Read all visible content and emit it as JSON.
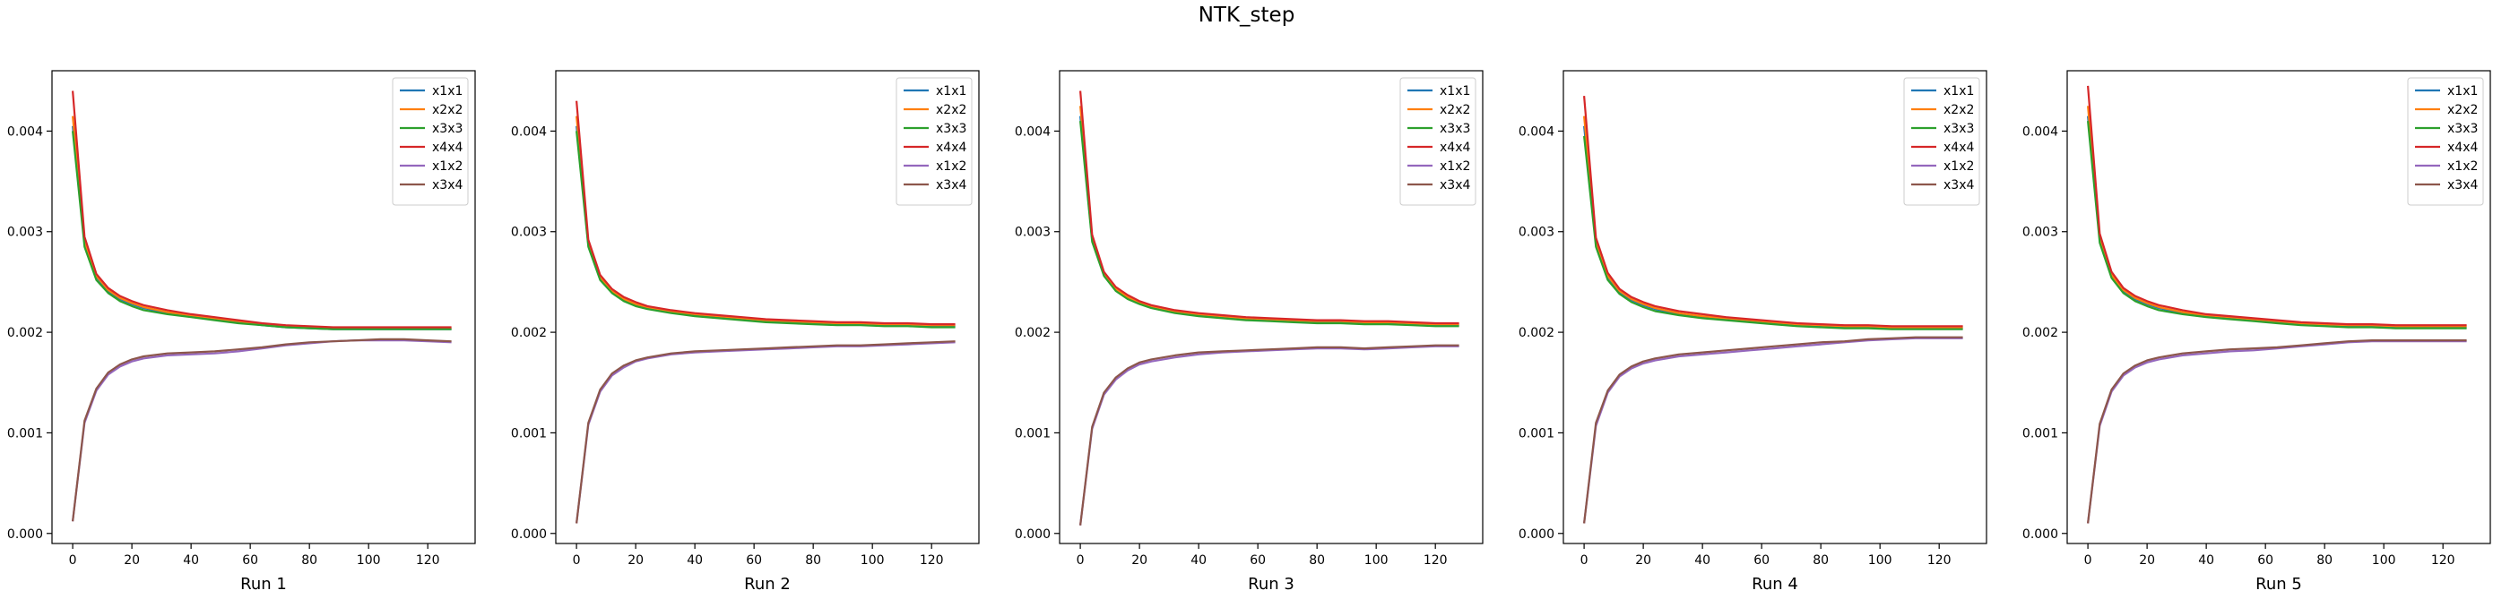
{
  "figure": {
    "title": "NTK_step"
  },
  "colors": {
    "x1x1": "#1f77b4",
    "x2x2": "#ff7f0e",
    "x3x3": "#2ca02c",
    "x4x4": "#d62728",
    "x1x2": "#9467bd",
    "x3x4": "#8c564b"
  },
  "chart_data": [
    {
      "type": "line",
      "xlabel": "Run 1",
      "xlim": [
        -7,
        136
      ],
      "ylim": [
        -0.0001,
        0.0046
      ],
      "xticks": [
        0,
        20,
        40,
        60,
        80,
        100,
        120
      ],
      "yticks": [
        0.0,
        0.001,
        0.002,
        0.003,
        0.004
      ],
      "legend": "top-right",
      "grid": false,
      "x": [
        0,
        4,
        8,
        12,
        16,
        20,
        24,
        32,
        40,
        48,
        56,
        64,
        72,
        80,
        88,
        96,
        104,
        112,
        120,
        128
      ],
      "series": [
        {
          "name": "x1x1",
          "values": [
            0.00405,
            0.00288,
            0.00255,
            0.00241,
            0.00233,
            0.00228,
            0.00224,
            0.00219,
            0.00216,
            0.00213,
            0.0021,
            0.00207,
            0.00205,
            0.00204,
            0.00203,
            0.00203,
            0.00203,
            0.00203,
            0.00203,
            0.00203
          ]
        },
        {
          "name": "x2x2",
          "values": [
            0.00415,
            0.0029,
            0.00256,
            0.00242,
            0.00234,
            0.00229,
            0.00225,
            0.0022,
            0.00217,
            0.00214,
            0.00211,
            0.00208,
            0.00206,
            0.00205,
            0.00204,
            0.00204,
            0.00204,
            0.00204,
            0.00204,
            0.00204
          ]
        },
        {
          "name": "x3x3",
          "values": [
            0.004,
            0.00285,
            0.00252,
            0.00239,
            0.00231,
            0.00226,
            0.00222,
            0.00218,
            0.00215,
            0.00212,
            0.00209,
            0.00207,
            0.00205,
            0.00204,
            0.00203,
            0.00203,
            0.00203,
            0.00203,
            0.00203,
            0.00203
          ]
        },
        {
          "name": "x4x4",
          "values": [
            0.0044,
            0.00295,
            0.00258,
            0.00244,
            0.00236,
            0.00231,
            0.00227,
            0.00222,
            0.00218,
            0.00215,
            0.00212,
            0.00209,
            0.00207,
            0.00206,
            0.00205,
            0.00205,
            0.00205,
            0.00205,
            0.00205,
            0.00205
          ]
        },
        {
          "name": "x1x2",
          "values": [
            0.00012,
            0.0011,
            0.00142,
            0.00158,
            0.00166,
            0.00171,
            0.00174,
            0.00177,
            0.00178,
            0.00179,
            0.00181,
            0.00184,
            0.00187,
            0.00189,
            0.00191,
            0.00192,
            0.00192,
            0.00192,
            0.00191,
            0.0019
          ]
        },
        {
          "name": "x3x4",
          "values": [
            0.00012,
            0.00112,
            0.00144,
            0.0016,
            0.00168,
            0.00173,
            0.00176,
            0.00179,
            0.0018,
            0.00181,
            0.00183,
            0.00185,
            0.00188,
            0.0019,
            0.00191,
            0.00192,
            0.00193,
            0.00193,
            0.00192,
            0.00191
          ]
        }
      ]
    },
    {
      "type": "line",
      "xlabel": "Run 2",
      "xlim": [
        -7,
        136
      ],
      "ylim": [
        -0.0001,
        0.0046
      ],
      "xticks": [
        0,
        20,
        40,
        60,
        80,
        100,
        120
      ],
      "yticks": [
        0.0,
        0.001,
        0.002,
        0.003,
        0.004
      ],
      "legend": "top-right",
      "grid": false,
      "x": [
        0,
        4,
        8,
        12,
        16,
        20,
        24,
        32,
        40,
        48,
        56,
        64,
        72,
        80,
        88,
        96,
        104,
        112,
        120,
        128
      ],
      "series": [
        {
          "name": "x1x1",
          "values": [
            0.00405,
            0.00287,
            0.00254,
            0.0024,
            0.00232,
            0.00227,
            0.00224,
            0.0022,
            0.00217,
            0.00215,
            0.00213,
            0.00211,
            0.0021,
            0.00209,
            0.00208,
            0.00208,
            0.00207,
            0.00207,
            0.00206,
            0.00206
          ]
        },
        {
          "name": "x2x2",
          "values": [
            0.00415,
            0.00289,
            0.00255,
            0.00241,
            0.00233,
            0.00228,
            0.00225,
            0.00221,
            0.00218,
            0.00216,
            0.00214,
            0.00212,
            0.00211,
            0.0021,
            0.00209,
            0.00209,
            0.00208,
            0.00208,
            0.00207,
            0.00207
          ]
        },
        {
          "name": "x3x3",
          "values": [
            0.004,
            0.00285,
            0.00252,
            0.00239,
            0.00231,
            0.00226,
            0.00223,
            0.00219,
            0.00216,
            0.00214,
            0.00212,
            0.0021,
            0.00209,
            0.00208,
            0.00207,
            0.00207,
            0.00206,
            0.00206,
            0.00205,
            0.00205
          ]
        },
        {
          "name": "x4x4",
          "values": [
            0.0043,
            0.00292,
            0.00257,
            0.00243,
            0.00235,
            0.0023,
            0.00226,
            0.00222,
            0.00219,
            0.00217,
            0.00215,
            0.00213,
            0.00212,
            0.00211,
            0.0021,
            0.0021,
            0.00209,
            0.00209,
            0.00208,
            0.00208
          ]
        },
        {
          "name": "x1x2",
          "values": [
            0.0001,
            0.00108,
            0.00141,
            0.00157,
            0.00165,
            0.00171,
            0.00174,
            0.00178,
            0.0018,
            0.00181,
            0.00182,
            0.00183,
            0.00184,
            0.00185,
            0.00186,
            0.00186,
            0.00187,
            0.00188,
            0.00189,
            0.0019
          ]
        },
        {
          "name": "x3x4",
          "values": [
            0.0001,
            0.0011,
            0.00143,
            0.00159,
            0.00167,
            0.00172,
            0.00175,
            0.00179,
            0.00181,
            0.00182,
            0.00183,
            0.00184,
            0.00185,
            0.00186,
            0.00187,
            0.00187,
            0.00188,
            0.00189,
            0.0019,
            0.00191
          ]
        }
      ]
    },
    {
      "type": "line",
      "xlabel": "Run 3",
      "xlim": [
        -7,
        136
      ],
      "ylim": [
        -0.0001,
        0.0046
      ],
      "xticks": [
        0,
        20,
        40,
        60,
        80,
        100,
        120
      ],
      "yticks": [
        0.0,
        0.001,
        0.002,
        0.003,
        0.004
      ],
      "legend": "top-right",
      "grid": false,
      "x": [
        0,
        4,
        8,
        12,
        16,
        20,
        24,
        32,
        40,
        48,
        56,
        64,
        72,
        80,
        88,
        96,
        104,
        112,
        120,
        128
      ],
      "series": [
        {
          "name": "x1x1",
          "values": [
            0.00415,
            0.00292,
            0.00257,
            0.00242,
            0.00234,
            0.00229,
            0.00225,
            0.0022,
            0.00217,
            0.00215,
            0.00213,
            0.00212,
            0.00211,
            0.0021,
            0.0021,
            0.00209,
            0.00209,
            0.00208,
            0.00207,
            0.00207
          ]
        },
        {
          "name": "x2x2",
          "values": [
            0.00425,
            0.00294,
            0.00258,
            0.00243,
            0.00235,
            0.0023,
            0.00226,
            0.00221,
            0.00218,
            0.00216,
            0.00214,
            0.00213,
            0.00212,
            0.00211,
            0.00211,
            0.0021,
            0.0021,
            0.00209,
            0.00208,
            0.00208
          ]
        },
        {
          "name": "x3x3",
          "values": [
            0.0041,
            0.0029,
            0.00256,
            0.00241,
            0.00233,
            0.00228,
            0.00224,
            0.00219,
            0.00216,
            0.00214,
            0.00212,
            0.00211,
            0.0021,
            0.00209,
            0.00209,
            0.00208,
            0.00208,
            0.00207,
            0.00206,
            0.00206
          ]
        },
        {
          "name": "x4x4",
          "values": [
            0.0044,
            0.00297,
            0.0026,
            0.00245,
            0.00237,
            0.00231,
            0.00227,
            0.00222,
            0.00219,
            0.00217,
            0.00215,
            0.00214,
            0.00213,
            0.00212,
            0.00212,
            0.00211,
            0.00211,
            0.0021,
            0.00209,
            0.00209
          ]
        },
        {
          "name": "x1x2",
          "values": [
            8e-05,
            0.00104,
            0.00138,
            0.00153,
            0.00162,
            0.00168,
            0.00171,
            0.00175,
            0.00178,
            0.0018,
            0.00181,
            0.00182,
            0.00183,
            0.00184,
            0.00184,
            0.00183,
            0.00184,
            0.00185,
            0.00186,
            0.00186
          ]
        },
        {
          "name": "x3x4",
          "values": [
            8e-05,
            0.00106,
            0.0014,
            0.00155,
            0.00164,
            0.0017,
            0.00173,
            0.00177,
            0.0018,
            0.00181,
            0.00182,
            0.00183,
            0.00184,
            0.00185,
            0.00185,
            0.00184,
            0.00185,
            0.00186,
            0.00187,
            0.00187
          ]
        }
      ]
    },
    {
      "type": "line",
      "xlabel": "Run 4",
      "xlim": [
        -7,
        136
      ],
      "ylim": [
        -0.0001,
        0.0046
      ],
      "xticks": [
        0,
        20,
        40,
        60,
        80,
        100,
        120
      ],
      "yticks": [
        0.0,
        0.001,
        0.002,
        0.003,
        0.004
      ],
      "legend": "top-right",
      "grid": false,
      "x": [
        0,
        4,
        8,
        12,
        16,
        20,
        24,
        32,
        40,
        48,
        56,
        64,
        72,
        80,
        88,
        96,
        104,
        112,
        120,
        128
      ],
      "series": [
        {
          "name": "x1x1",
          "values": [
            0.00405,
            0.00288,
            0.00255,
            0.0024,
            0.00232,
            0.00227,
            0.00223,
            0.00218,
            0.00215,
            0.00213,
            0.00211,
            0.00209,
            0.00207,
            0.00206,
            0.00205,
            0.00205,
            0.00204,
            0.00204,
            0.00204,
            0.00204
          ]
        },
        {
          "name": "x2x2",
          "values": [
            0.00415,
            0.0029,
            0.00256,
            0.00241,
            0.00233,
            0.00228,
            0.00224,
            0.00219,
            0.00216,
            0.00214,
            0.00212,
            0.0021,
            0.00208,
            0.00207,
            0.00206,
            0.00206,
            0.00205,
            0.00205,
            0.00205,
            0.00205
          ]
        },
        {
          "name": "x3x3",
          "values": [
            0.00395,
            0.00285,
            0.00252,
            0.00238,
            0.0023,
            0.00225,
            0.00221,
            0.00217,
            0.00214,
            0.00212,
            0.0021,
            0.00208,
            0.00206,
            0.00205,
            0.00204,
            0.00204,
            0.00203,
            0.00203,
            0.00203,
            0.00203
          ]
        },
        {
          "name": "x4x4",
          "values": [
            0.00435,
            0.00294,
            0.00259,
            0.00243,
            0.00235,
            0.0023,
            0.00226,
            0.00221,
            0.00218,
            0.00215,
            0.00213,
            0.00211,
            0.00209,
            0.00208,
            0.00207,
            0.00207,
            0.00206,
            0.00206,
            0.00206,
            0.00206
          ]
        },
        {
          "name": "x1x2",
          "values": [
            0.0001,
            0.00107,
            0.0014,
            0.00156,
            0.00164,
            0.00169,
            0.00172,
            0.00176,
            0.00178,
            0.0018,
            0.00182,
            0.00184,
            0.00186,
            0.00188,
            0.0019,
            0.00192,
            0.00193,
            0.00194,
            0.00194,
            0.00194
          ]
        },
        {
          "name": "x3x4",
          "values": [
            0.0001,
            0.0011,
            0.00142,
            0.00158,
            0.00166,
            0.00171,
            0.00174,
            0.00178,
            0.0018,
            0.00182,
            0.00184,
            0.00186,
            0.00188,
            0.0019,
            0.00191,
            0.00193,
            0.00194,
            0.00195,
            0.00195,
            0.00195
          ]
        }
      ]
    },
    {
      "type": "line",
      "xlabel": "Run 5",
      "xlim": [
        -7,
        136
      ],
      "ylim": [
        -0.0001,
        0.0046
      ],
      "xticks": [
        0,
        20,
        40,
        60,
        80,
        100,
        120
      ],
      "yticks": [
        0.0,
        0.001,
        0.002,
        0.003,
        0.004
      ],
      "legend": "top-right",
      "grid": false,
      "x": [
        0,
        4,
        8,
        12,
        16,
        20,
        24,
        32,
        40,
        48,
        56,
        64,
        72,
        80,
        88,
        96,
        104,
        112,
        120,
        128
      ],
      "series": [
        {
          "name": "x1x1",
          "values": [
            0.00415,
            0.00292,
            0.00256,
            0.00241,
            0.00233,
            0.00228,
            0.00224,
            0.00219,
            0.00216,
            0.00214,
            0.00212,
            0.0021,
            0.00208,
            0.00207,
            0.00206,
            0.00206,
            0.00205,
            0.00205,
            0.00205,
            0.00205
          ]
        },
        {
          "name": "x2x2",
          "values": [
            0.00425,
            0.00294,
            0.00257,
            0.00242,
            0.00234,
            0.00229,
            0.00225,
            0.0022,
            0.00217,
            0.00215,
            0.00213,
            0.00211,
            0.00209,
            0.00208,
            0.00207,
            0.00207,
            0.00206,
            0.00206,
            0.00206,
            0.00206
          ]
        },
        {
          "name": "x3x3",
          "values": [
            0.0041,
            0.00289,
            0.00254,
            0.00239,
            0.00231,
            0.00226,
            0.00222,
            0.00218,
            0.00215,
            0.00213,
            0.00211,
            0.00209,
            0.00207,
            0.00206,
            0.00205,
            0.00205,
            0.00204,
            0.00204,
            0.00204,
            0.00204
          ]
        },
        {
          "name": "x4x4",
          "values": [
            0.00445,
            0.00298,
            0.0026,
            0.00244,
            0.00236,
            0.00231,
            0.00227,
            0.00222,
            0.00218,
            0.00216,
            0.00214,
            0.00212,
            0.0021,
            0.00209,
            0.00208,
            0.00208,
            0.00207,
            0.00207,
            0.00207,
            0.00207
          ]
        },
        {
          "name": "x1x2",
          "values": [
            0.0001,
            0.00107,
            0.00141,
            0.00157,
            0.00165,
            0.0017,
            0.00173,
            0.00177,
            0.00179,
            0.00181,
            0.00182,
            0.00184,
            0.00186,
            0.00188,
            0.0019,
            0.00191,
            0.00191,
            0.00191,
            0.00191,
            0.00191
          ]
        },
        {
          "name": "x3x4",
          "values": [
            0.0001,
            0.00109,
            0.00143,
            0.00159,
            0.00167,
            0.00172,
            0.00175,
            0.00179,
            0.00181,
            0.00183,
            0.00184,
            0.00185,
            0.00187,
            0.00189,
            0.00191,
            0.00192,
            0.00192,
            0.00192,
            0.00192,
            0.00192
          ]
        }
      ]
    }
  ]
}
